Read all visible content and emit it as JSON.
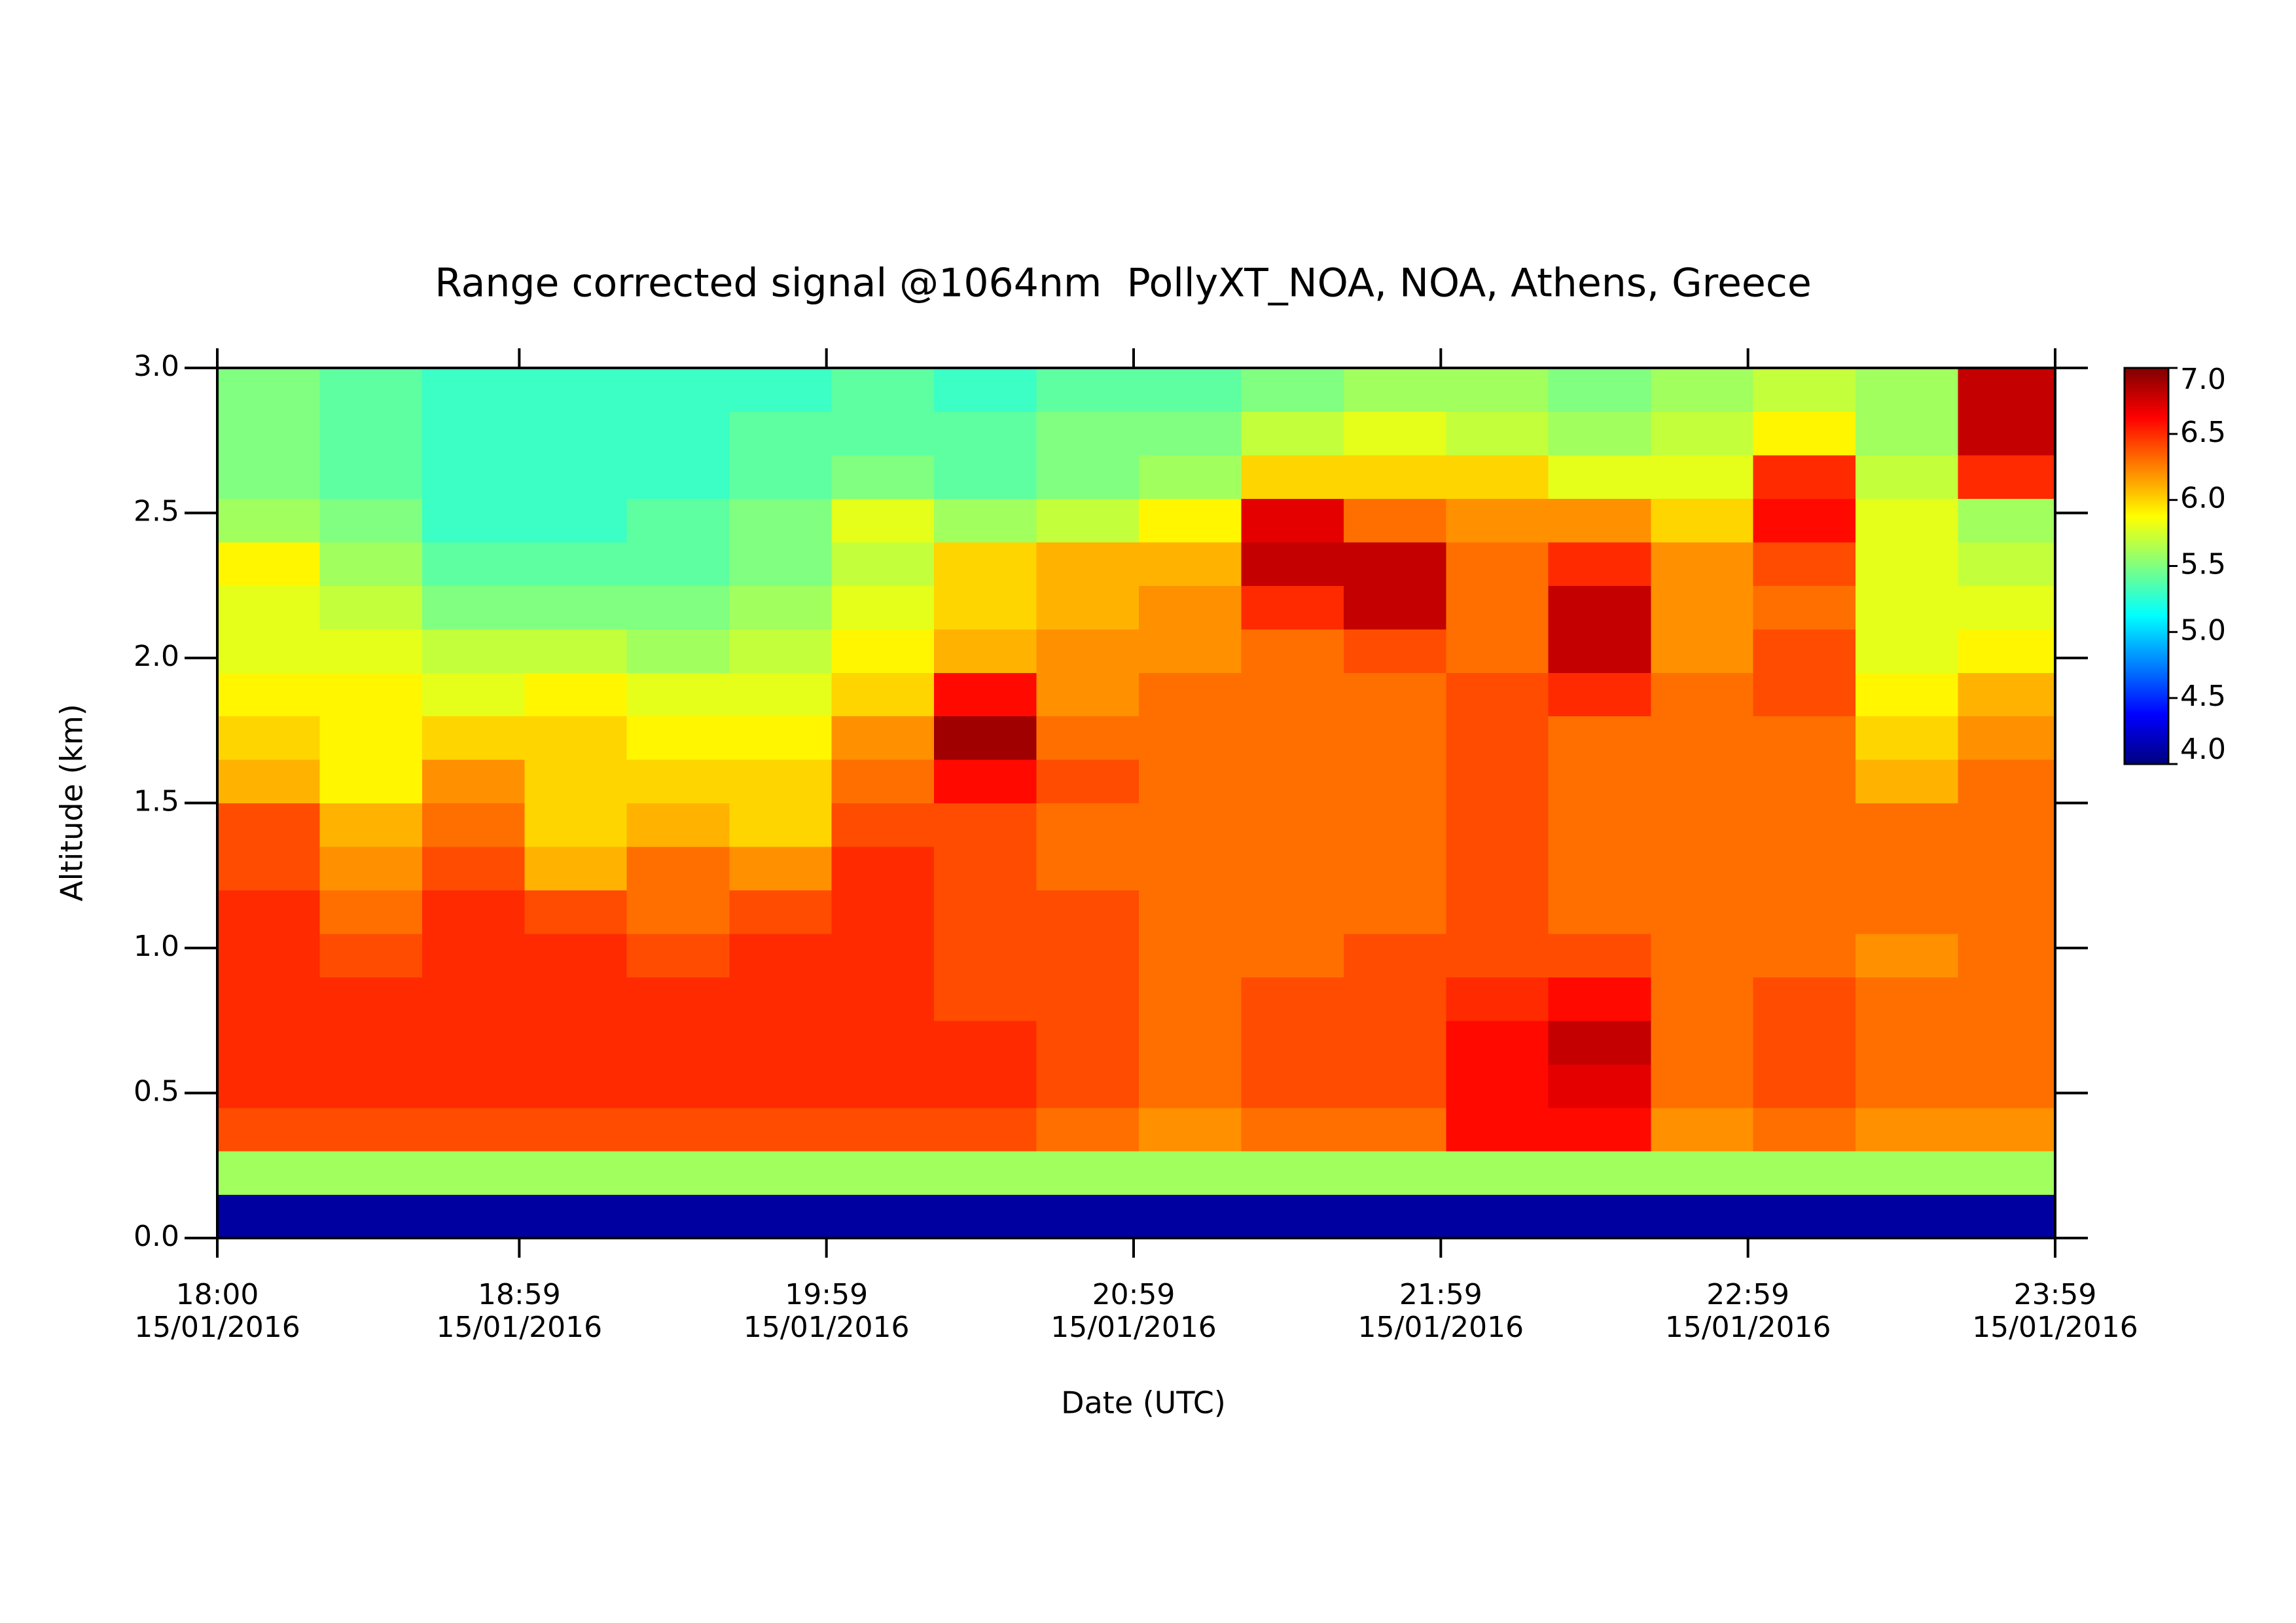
{
  "chart_data": {
    "type": "heatmap",
    "title": "Range corrected signal @1064nm  PollyXT_NOA, NOA, Athens, Greece",
    "x_label": "Date (UTC)",
    "y_label": "Altitude (km)",
    "x_tick_date": "15/01/2016",
    "colormap": "jet",
    "xlim": [
      18,
      23.983
    ],
    "xticks": [
      {
        "value": 18,
        "label": "18:00"
      },
      {
        "value": 18.983,
        "label": "18:59"
      },
      {
        "value": 19.983,
        "label": "19:59"
      },
      {
        "value": 20.983,
        "label": "20:59"
      },
      {
        "value": 21.983,
        "label": "21:59"
      },
      {
        "value": 22.983,
        "label": "22:59"
      },
      {
        "value": 23.983,
        "label": "23:59"
      }
    ],
    "ylim": [
      0,
      3
    ],
    "yticks": [
      {
        "value": 0,
        "label": "0.0"
      },
      0.5,
      {
        "value": 1,
        "label": "1.0"
      },
      1.5,
      {
        "value": 2,
        "label": "2.0"
      },
      2.5,
      {
        "value": 3,
        "label": "3.0"
      }
    ],
    "zlim": [
      4,
      7
    ],
    "zticks": [
      {
        "value": 4,
        "label": "4.0"
      },
      4.5,
      {
        "value": 5,
        "label": "5.0"
      },
      5.5,
      {
        "value": 6,
        "label": "6.0"
      },
      6.5,
      {
        "value": 7,
        "label": "7.0"
      }
    ],
    "x_bins": [
      18,
      18.333,
      18.667,
      19,
      19.333,
      19.667,
      20,
      20.333,
      20.667,
      21,
      21.333,
      21.667,
      22,
      22.333,
      22.667,
      23,
      23.333,
      23.667,
      23.983
    ],
    "y_bins": [
      0,
      0.15,
      0.3,
      0.45,
      0.6,
      0.75,
      0.9,
      1.05,
      1.2,
      1.35,
      1.5,
      1.65,
      1.8,
      1.95,
      2.1,
      2.25,
      2.4,
      2.55,
      2.7,
      2.85,
      3.0
    ],
    "z": [
      [
        4.1,
        4.1,
        4.1,
        4.1,
        4.1,
        4.1,
        4.1,
        4.1,
        4.1,
        4.1,
        4.1,
        4.1,
        4.1,
        4.1,
        4.1,
        4.1,
        4.1,
        4.1
      ],
      [
        5.6,
        5.6,
        5.6,
        5.6,
        5.6,
        5.6,
        5.6,
        5.6,
        5.6,
        5.6,
        5.6,
        5.6,
        5.6,
        5.6,
        5.6,
        5.6,
        5.6,
        5.6
      ],
      [
        6.4,
        6.4,
        6.4,
        6.4,
        6.4,
        6.4,
        6.4,
        6.4,
        6.3,
        6.2,
        6.3,
        6.3,
        6.6,
        6.6,
        6.2,
        6.3,
        6.2,
        6.2
      ],
      [
        6.5,
        6.5,
        6.5,
        6.5,
        6.5,
        6.5,
        6.5,
        6.5,
        6.4,
        6.3,
        6.4,
        6.4,
        6.6,
        6.7,
        6.3,
        6.4,
        6.3,
        6.3
      ],
      [
        6.5,
        6.5,
        6.5,
        6.5,
        6.5,
        6.5,
        6.5,
        6.5,
        6.4,
        6.3,
        6.4,
        6.4,
        6.6,
        6.8,
        6.3,
        6.4,
        6.3,
        6.3
      ],
      [
        6.5,
        6.5,
        6.5,
        6.5,
        6.5,
        6.5,
        6.5,
        6.4,
        6.4,
        6.3,
        6.4,
        6.4,
        6.5,
        6.6,
        6.3,
        6.4,
        6.3,
        6.3
      ],
      [
        6.5,
        6.4,
        6.5,
        6.5,
        6.4,
        6.5,
        6.5,
        6.4,
        6.4,
        6.3,
        6.3,
        6.4,
        6.4,
        6.4,
        6.3,
        6.3,
        6.2,
        6.3
      ],
      [
        6.5,
        6.3,
        6.5,
        6.4,
        6.3,
        6.4,
        6.5,
        6.4,
        6.4,
        6.3,
        6.3,
        6.3,
        6.4,
        6.3,
        6.3,
        6.3,
        6.3,
        6.3
      ],
      [
        6.4,
        6.2,
        6.4,
        6.1,
        6.3,
        6.2,
        6.5,
        6.4,
        6.3,
        6.3,
        6.3,
        6.3,
        6.4,
        6.3,
        6.3,
        6.3,
        6.3,
        6.3
      ],
      [
        6.4,
        6.1,
        6.3,
        6.0,
        6.1,
        6.0,
        6.4,
        6.4,
        6.3,
        6.3,
        6.3,
        6.3,
        6.4,
        6.3,
        6.3,
        6.3,
        6.3,
        6.3
      ],
      [
        6.1,
        5.9,
        6.2,
        6.0,
        6.0,
        6.0,
        6.3,
        6.6,
        6.4,
        6.3,
        6.3,
        6.3,
        6.4,
        6.3,
        6.3,
        6.3,
        6.1,
        6.3
      ],
      [
        6.0,
        5.9,
        6.0,
        6.0,
        5.9,
        5.9,
        6.2,
        6.9,
        6.3,
        6.3,
        6.3,
        6.3,
        6.4,
        6.3,
        6.3,
        6.3,
        6.0,
        6.2
      ],
      [
        5.9,
        5.9,
        5.8,
        5.9,
        5.8,
        5.8,
        6.0,
        6.6,
        6.2,
        6.3,
        6.3,
        6.3,
        6.4,
        6.5,
        6.3,
        6.4,
        5.9,
        6.1
      ],
      [
        5.8,
        5.8,
        5.7,
        5.7,
        5.6,
        5.7,
        5.9,
        6.1,
        6.2,
        6.2,
        6.3,
        6.4,
        6.3,
        6.8,
        6.2,
        6.4,
        5.8,
        5.9
      ],
      [
        5.8,
        5.7,
        5.5,
        5.5,
        5.5,
        5.6,
        5.8,
        6.0,
        6.1,
        6.2,
        6.5,
        6.8,
        6.3,
        6.8,
        6.2,
        6.3,
        5.8,
        5.8
      ],
      [
        5.9,
        5.6,
        5.4,
        5.4,
        5.4,
        5.5,
        5.7,
        6.0,
        6.1,
        6.1,
        6.8,
        6.8,
        6.3,
        6.5,
        6.2,
        6.4,
        5.8,
        5.7
      ],
      [
        5.6,
        5.5,
        5.3,
        5.3,
        5.4,
        5.5,
        5.8,
        5.6,
        5.7,
        5.9,
        6.7,
        6.3,
        6.2,
        6.2,
        6.0,
        6.6,
        5.8,
        5.6
      ],
      [
        5.5,
        5.4,
        5.3,
        5.3,
        5.3,
        5.4,
        5.5,
        5.4,
        5.5,
        5.6,
        6.0,
        6.0,
        6.0,
        5.8,
        5.8,
        6.5,
        5.7,
        6.5
      ],
      [
        5.5,
        5.4,
        5.3,
        5.3,
        5.3,
        5.4,
        5.4,
        5.4,
        5.5,
        5.5,
        5.7,
        5.8,
        5.7,
        5.6,
        5.7,
        5.9,
        5.6,
        6.8
      ],
      [
        5.5,
        5.4,
        5.3,
        5.3,
        5.3,
        5.3,
        5.4,
        5.3,
        5.4,
        5.4,
        5.5,
        5.6,
        5.6,
        5.5,
        5.6,
        5.7,
        5.6,
        6.8
      ]
    ]
  }
}
